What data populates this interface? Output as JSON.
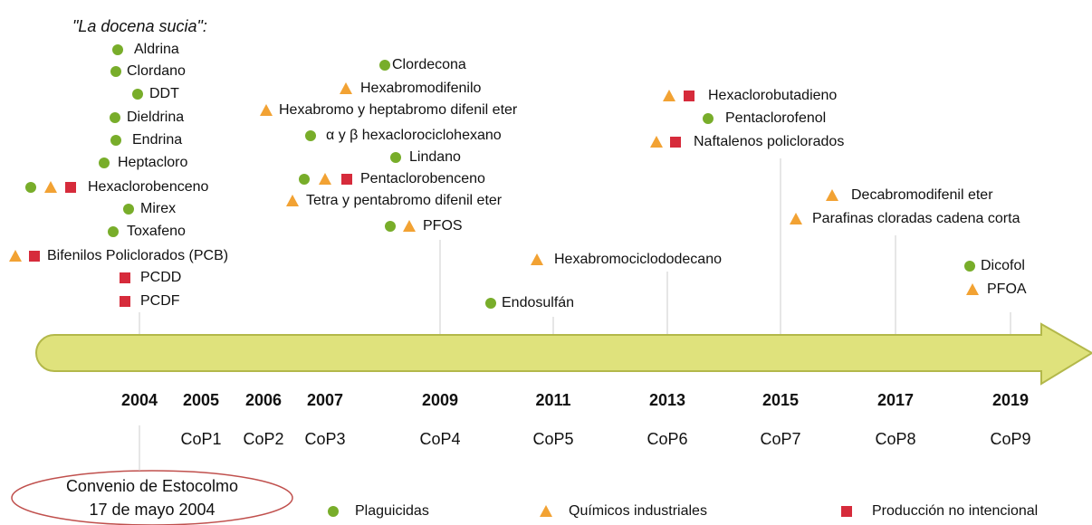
{
  "title": "\"La docena sucia\":",
  "items": [
    "Aldrina",
    "Clordano",
    "DDT",
    "Dieldrina",
    "Endrina",
    "Heptacloro",
    "Hexaclorobenceno",
    "Mirex",
    "Toxafeno",
    "Bifenilos Policlorados (PCB)",
    "PCDD",
    "PCDF",
    "Clordecona",
    "Hexabromodifenilo",
    "Hexabromo y heptabromo difenil eter",
    "α y β hexaclorociclohexano",
    "Lindano",
    "Pentaclorobenceno",
    "Tetra y pentabromo difenil eter",
    "PFOS",
    "Hexabromociclododecano",
    "Endosulfán",
    "Hexaclorobutadieno",
    "Pentaclorofenol",
    "Naftalenos policlorados",
    "Decabromodifenil eter",
    "Parafinas cloradas cadena corta",
    "Dicofol",
    "PFOA"
  ],
  "timeline": [
    {
      "year": "2004"
    },
    {
      "year": "2005",
      "cop": "CoP1"
    },
    {
      "year": "2006",
      "cop": "CoP2"
    },
    {
      "year": "2007",
      "cop": "CoP3"
    },
    {
      "year": "2009",
      "cop": "CoP4"
    },
    {
      "year": "2011",
      "cop": "CoP5"
    },
    {
      "year": "2013",
      "cop": "CoP6"
    },
    {
      "year": "2015",
      "cop": "CoP7"
    },
    {
      "year": "2017",
      "cop": "CoP8"
    },
    {
      "year": "2019",
      "cop": "CoP9"
    }
  ],
  "convention": {
    "line1": "Convenio de Estocolmo",
    "line2": "17 de mayo 2004"
  },
  "legend": [
    "Plaguicidas",
    "Químicos industriales",
    "Producción no intencional"
  ]
}
